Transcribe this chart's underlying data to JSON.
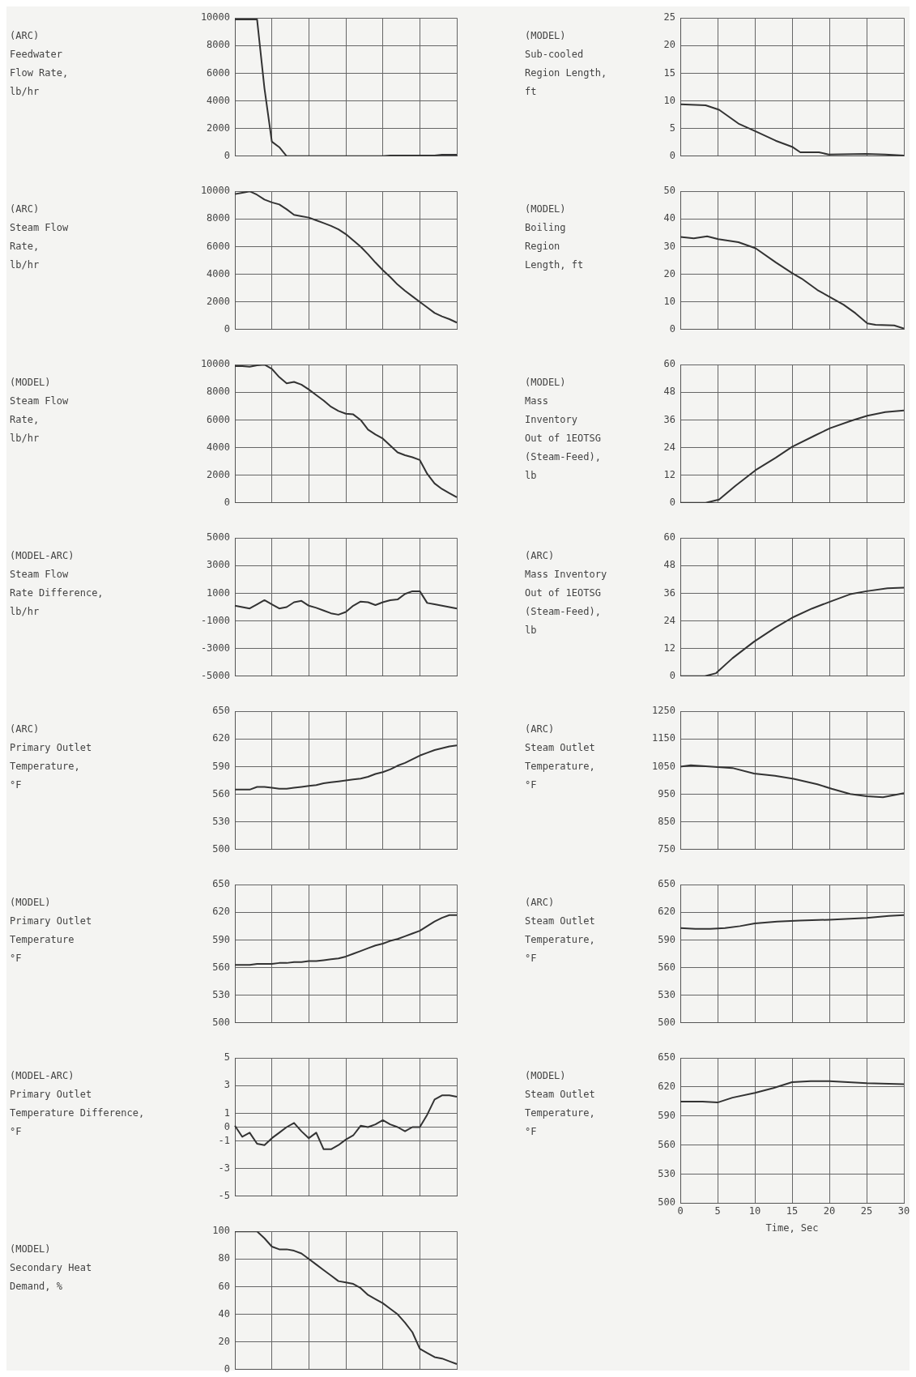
{
  "chart_data": [
    {
      "type": "line",
      "ylabel": "(ARC)\nFeedwater\nFlow Rate,\nlb/hr",
      "color": "#333333",
      "categories": [
        null,
        null,
        null,
        null,
        null,
        null,
        null,
        null,
        null,
        null,
        null,
        null,
        null,
        null,
        null,
        null,
        null,
        null,
        null,
        null,
        null,
        null,
        null,
        null,
        null,
        null,
        null,
        null,
        null,
        null,
        null
      ],
      "values": [
        9900,
        9900,
        9900,
        9900,
        4900,
        1050,
        650,
        0,
        0,
        0,
        0,
        0,
        0,
        0,
        0,
        0,
        0,
        0,
        0,
        0,
        0,
        50,
        50,
        50,
        50,
        50,
        50,
        50,
        100,
        100,
        100
      ],
      "ylim": [
        0,
        10000
      ],
      "yticks": [
        0,
        2000,
        4000,
        6000,
        8000,
        10000
      ],
      "grid": true,
      "tick_labels": "y"
    },
    {
      "type": "line",
      "ylabel": "(ARC)\nSteam Flow\nRate,\nlb/hr",
      "color": "#333333",
      "categories": [
        null,
        null,
        null,
        null,
        null,
        null,
        null,
        null,
        null,
        null,
        null,
        null,
        null,
        null,
        null,
        null,
        null,
        null,
        null,
        null,
        null,
        null,
        null,
        null,
        null,
        null,
        null,
        null,
        null,
        null,
        null
      ],
      "values": [
        9800,
        9900,
        10000,
        9750,
        9400,
        9200,
        9050,
        8700,
        8300,
        8200,
        8100,
        7900,
        7700,
        7500,
        7250,
        6900,
        6450,
        6000,
        5450,
        4850,
        4300,
        3800,
        3250,
        2800,
        2400,
        2000,
        1600,
        1200,
        950,
        750,
        500
      ],
      "ylim": [
        0,
        10000
      ],
      "yticks": [
        0,
        2000,
        4000,
        6000,
        8000,
        10000
      ],
      "grid": true,
      "tick_labels": "y"
    },
    {
      "type": "line",
      "ylabel": "(MODEL)\nSteam Flow\nRate,\nlb/hr",
      "color": "#333333",
      "categories": [
        null,
        null,
        null,
        null,
        null,
        null,
        null,
        null,
        null,
        null,
        null,
        null,
        null,
        null,
        null,
        null,
        null,
        null,
        null,
        null,
        null,
        null,
        null,
        null,
        null,
        null,
        null,
        null,
        null,
        null,
        null
      ],
      "values": [
        9900,
        9900,
        9850,
        9950,
        10000,
        9700,
        9100,
        8650,
        8750,
        8550,
        8200,
        7800,
        7400,
        6950,
        6650,
        6450,
        6400,
        6000,
        5300,
        4950,
        4650,
        4150,
        3650,
        3450,
        3300,
        3100,
        2100,
        1400,
        1000,
        700,
        400
      ],
      "ylim": [
        0,
        10000
      ],
      "yticks": [
        0,
        2000,
        4000,
        6000,
        8000,
        10000
      ],
      "grid": true,
      "tick_labels": "y"
    },
    {
      "type": "line",
      "ylabel": "(MODEL-ARC)\nSteam Flow\nRate Difference,\nlb/hr",
      "color": "#333333",
      "categories": [
        null,
        null,
        null,
        null,
        null,
        null,
        null,
        null,
        null,
        null,
        null,
        null,
        null,
        null,
        null,
        null,
        null,
        null,
        null,
        null,
        null,
        null,
        null,
        null,
        null,
        null,
        null,
        null,
        null,
        null,
        null
      ],
      "values": [
        100,
        0,
        -100,
        200,
        500,
        200,
        -100,
        0,
        350,
        450,
        100,
        -50,
        -250,
        -450,
        -550,
        -350,
        100,
        400,
        350,
        150,
        350,
        500,
        550,
        950,
        1150,
        1150,
        300,
        200,
        100,
        0,
        -100
      ],
      "ylim": [
        -5000,
        5000
      ],
      "yticks": [
        -5000,
        -3000,
        -1000,
        1000,
        3000,
        5000
      ],
      "grid": true,
      "tick_labels": "y"
    },
    {
      "type": "line",
      "ylabel": "(ARC)\nPrimary Outlet\nTemperature,\n°F",
      "color": "#333333",
      "categories": [
        null,
        null,
        null,
        null,
        null,
        null,
        null,
        null,
        null,
        null,
        null,
        null,
        null,
        null,
        null,
        null,
        null,
        null,
        null,
        null,
        null,
        null,
        null,
        null,
        null,
        null,
        null,
        null,
        null,
        null,
        null
      ],
      "values": [
        565,
        565,
        565,
        568,
        568,
        567,
        566,
        566,
        567,
        568,
        569,
        570,
        572,
        573,
        574,
        575,
        576,
        577,
        579,
        582,
        584,
        587,
        591,
        594,
        598,
        602,
        605,
        608,
        610,
        612,
        613
      ],
      "ylim": [
        500,
        650
      ],
      "yticks": [
        500,
        530,
        560,
        590,
        620,
        650
      ],
      "grid": true,
      "tick_labels": "y"
    },
    {
      "type": "line",
      "ylabel": "(MODEL)\nPrimary Outlet\nTemperature\n°F",
      "color": "#333333",
      "categories": [
        null,
        null,
        null,
        null,
        null,
        null,
        null,
        null,
        null,
        null,
        null,
        null,
        null,
        null,
        null,
        null,
        null,
        null,
        null,
        null,
        null,
        null,
        null,
        null,
        null,
        null,
        null,
        null,
        null,
        null,
        null
      ],
      "values": [
        563,
        563,
        563,
        564,
        564,
        564,
        565,
        565,
        566,
        566,
        567,
        567,
        568,
        569,
        570,
        572,
        575,
        578,
        581,
        584,
        586,
        589,
        591,
        594,
        597,
        600,
        605,
        610,
        614,
        617,
        617
      ],
      "ylim": [
        500,
        650
      ],
      "yticks": [
        500,
        530,
        560,
        590,
        620,
        650
      ],
      "grid": true,
      "tick_labels": "y"
    },
    {
      "type": "line",
      "ylabel": "(MODEL-ARC)\nPrimary Outlet\nTemperature Difference,\n°F",
      "color": "#333333",
      "categories": [
        null,
        null,
        null,
        null,
        null,
        null,
        null,
        null,
        null,
        null,
        null,
        null,
        null,
        null,
        null,
        null,
        null,
        null,
        null,
        null,
        null,
        null,
        null,
        null,
        null,
        null,
        null,
        null,
        null,
        null,
        null
      ],
      "values": [
        0.1,
        -0.7,
        -0.4,
        -1.2,
        -1.3,
        -0.8,
        -0.4,
        0,
        0.3,
        -0.3,
        -0.8,
        -0.4,
        -1.6,
        -1.6,
        -1.3,
        -0.9,
        -0.6,
        0.1,
        0,
        0.2,
        0.5,
        0.2,
        0,
        -0.3,
        0,
        0,
        0.9,
        2.0,
        2.3,
        2.3,
        2.2
      ],
      "ylim": [
        -5,
        5
      ],
      "yticks": [
        -5,
        -3,
        -1,
        0,
        1,
        3,
        5
      ],
      "grid": true,
      "tick_labels": "y"
    },
    {
      "type": "line",
      "ylabel": "(MODEL)\nSecondary Heat\nDemand, %",
      "color": "#333333",
      "categories": [
        null,
        null,
        null,
        null,
        null,
        null,
        null,
        null,
        null,
        null,
        null,
        null,
        null,
        null,
        null,
        null,
        null,
        null,
        null,
        null,
        null,
        null,
        null,
        null,
        null,
        null,
        null,
        null,
        null,
        null,
        null
      ],
      "values": [
        100,
        100,
        100,
        100,
        95,
        89,
        87,
        87,
        86,
        84,
        80,
        76,
        72,
        68,
        64,
        63,
        62,
        59,
        54,
        51,
        48,
        44,
        40,
        34,
        27,
        15,
        12,
        9,
        8,
        6,
        4
      ],
      "ylim": [
        0,
        100
      ],
      "yticks": [
        0,
        20,
        40,
        60,
        80,
        100
      ],
      "grid": true,
      "tick_labels": "y"
    },
    {
      "type": "line",
      "ylabel": "(MODEL)\nSub-cooled\nRegion Length,\nft",
      "color": "#333333",
      "x": [
        0,
        3.4,
        5.2,
        7.8,
        10.1,
        12.8,
        15.0,
        16.1,
        18.6,
        19.9,
        24.9,
        27.5,
        30
      ],
      "values": [
        9.4,
        9.2,
        8.4,
        5.9,
        4.5,
        2.8,
        1.7,
        0.7,
        0.7,
        0.3,
        0.4,
        0.3,
        0.1
      ],
      "xlim": [
        0,
        30
      ],
      "xticks": [
        0,
        5,
        10,
        15,
        20,
        25,
        30
      ],
      "ylim": [
        0,
        25
      ],
      "yticks": [
        0,
        5,
        10,
        15,
        20,
        25
      ],
      "grid": true,
      "tick_labels": "y"
    },
    {
      "type": "line",
      "ylabel": "(MODEL)\nBoiling\nRegion\nLength, ft",
      "color": "#333333",
      "x": [
        0,
        1.8,
        3.6,
        5.1,
        7.8,
        10.1,
        12.8,
        15.0,
        16.3,
        18.4,
        20.1,
        21.9,
        23.5,
        25.1,
        26.2,
        28.7,
        30
      ],
      "values": [
        33.5,
        33,
        33.7,
        32.7,
        31.6,
        29.4,
        24.3,
        20.4,
        18.4,
        14.3,
        11.7,
        9,
        5.9,
        2.2,
        1.7,
        1.5,
        0.4
      ],
      "xlim": [
        0,
        30
      ],
      "xticks": [
        0,
        5,
        10,
        15,
        20,
        25,
        30
      ],
      "ylim": [
        0,
        50
      ],
      "yticks": [
        0,
        10,
        20,
        30,
        40,
        50
      ],
      "grid": true,
      "tick_labels": "y"
    },
    {
      "type": "line",
      "ylabel": "(MODEL)\nMass\nInventory\nOut of 1EOTSG\n(Steam-Feed),\nlb",
      "color": "#333333",
      "x": [
        0,
        3.4,
        5.2,
        7.4,
        10.1,
        12.8,
        15.0,
        18.1,
        20.1,
        23.0,
        25.1,
        27.5,
        30
      ],
      "values": [
        0,
        0,
        1.4,
        7.4,
        14.2,
        19.6,
        24.3,
        29.3,
        32.4,
        35.7,
        37.8,
        39.4,
        40.1
      ],
      "xlim": [
        0,
        30
      ],
      "xticks": [
        0,
        5,
        10,
        15,
        20,
        25,
        30
      ],
      "ylim": [
        0,
        60
      ],
      "yticks": [
        0,
        12,
        24,
        36,
        48,
        60
      ],
      "grid": true,
      "tick_labels": "y"
    },
    {
      "type": "line",
      "ylabel": "(ARC)\nMass Inventory\nOut of 1EOTSG\n(Steam-Feed),\nlb",
      "color": "#333333",
      "x": [
        0,
        3.3,
        4.8,
        7.0,
        9.9,
        12.7,
        15.2,
        17.7,
        20.3,
        22.8,
        25.0,
        27.8,
        30
      ],
      "values": [
        0,
        0,
        1.3,
        7.8,
        15,
        21,
        25.7,
        29.4,
        32.6,
        35.6,
        36.9,
        38.2,
        38.4
      ],
      "xlim": [
        0,
        30
      ],
      "xticks": [
        0,
        5,
        10,
        15,
        20,
        25,
        30
      ],
      "ylim": [
        0,
        60
      ],
      "yticks": [
        0,
        12,
        24,
        36,
        48,
        60
      ],
      "grid": true,
      "tick_labels": "y"
    },
    {
      "type": "line",
      "ylabel": "(ARC)\nSteam Outlet\nTemperature,\n°F",
      "color": "#333333",
      "x": [
        0,
        1.4,
        7.0,
        9.9,
        12.7,
        15.2,
        18.4,
        20.3,
        22.8,
        25.0,
        27.2,
        30
      ],
      "values": [
        1050,
        1055,
        1045,
        1025,
        1017,
        1006,
        986,
        970,
        951,
        943,
        939,
        954
      ],
      "xlim": [
        0,
        30
      ],
      "xticks": [
        0,
        5,
        10,
        15,
        20,
        25,
        30
      ],
      "ylim": [
        750,
        1250
      ],
      "yticks": [
        750,
        850,
        950,
        1050,
        1150,
        1250
      ],
      "grid": true,
      "tick_labels": "y"
    },
    {
      "type": "line",
      "ylabel": "(ARC)\nSteam Outlet\nTemperature,\n°F",
      "color": "#333333",
      "x": [
        0,
        2,
        4,
        6,
        8,
        10,
        13,
        16,
        20,
        25,
        28,
        30
      ],
      "values": [
        603,
        602,
        602,
        603,
        605,
        608,
        610,
        611,
        612,
        614,
        616,
        617
      ],
      "xlim": [
        0,
        30
      ],
      "xticks": [
        0,
        5,
        10,
        15,
        20,
        25,
        30
      ],
      "ylim": [
        500,
        650
      ],
      "yticks": [
        500,
        530,
        560,
        590,
        620,
        650
      ],
      "grid": true,
      "tick_labels": "y"
    },
    {
      "type": "line",
      "ylabel": "(MODEL)\nSteam Outlet\nTemperature,\n°F",
      "xlabel": "Time, Sec",
      "color": "#333333",
      "x": [
        0,
        3,
        5,
        7,
        10,
        12.5,
        15,
        17.5,
        20,
        22.5,
        25,
        30
      ],
      "values": [
        605,
        605,
        604,
        609,
        614,
        619,
        625,
        626,
        626,
        625,
        624,
        623
      ],
      "xlim": [
        0,
        30
      ],
      "xticks": [
        0,
        5,
        10,
        15,
        20,
        25,
        30
      ],
      "ylim": [
        500,
        650
      ],
      "yticks": [
        500,
        530,
        560,
        590,
        620,
        650
      ],
      "grid": true
    }
  ]
}
